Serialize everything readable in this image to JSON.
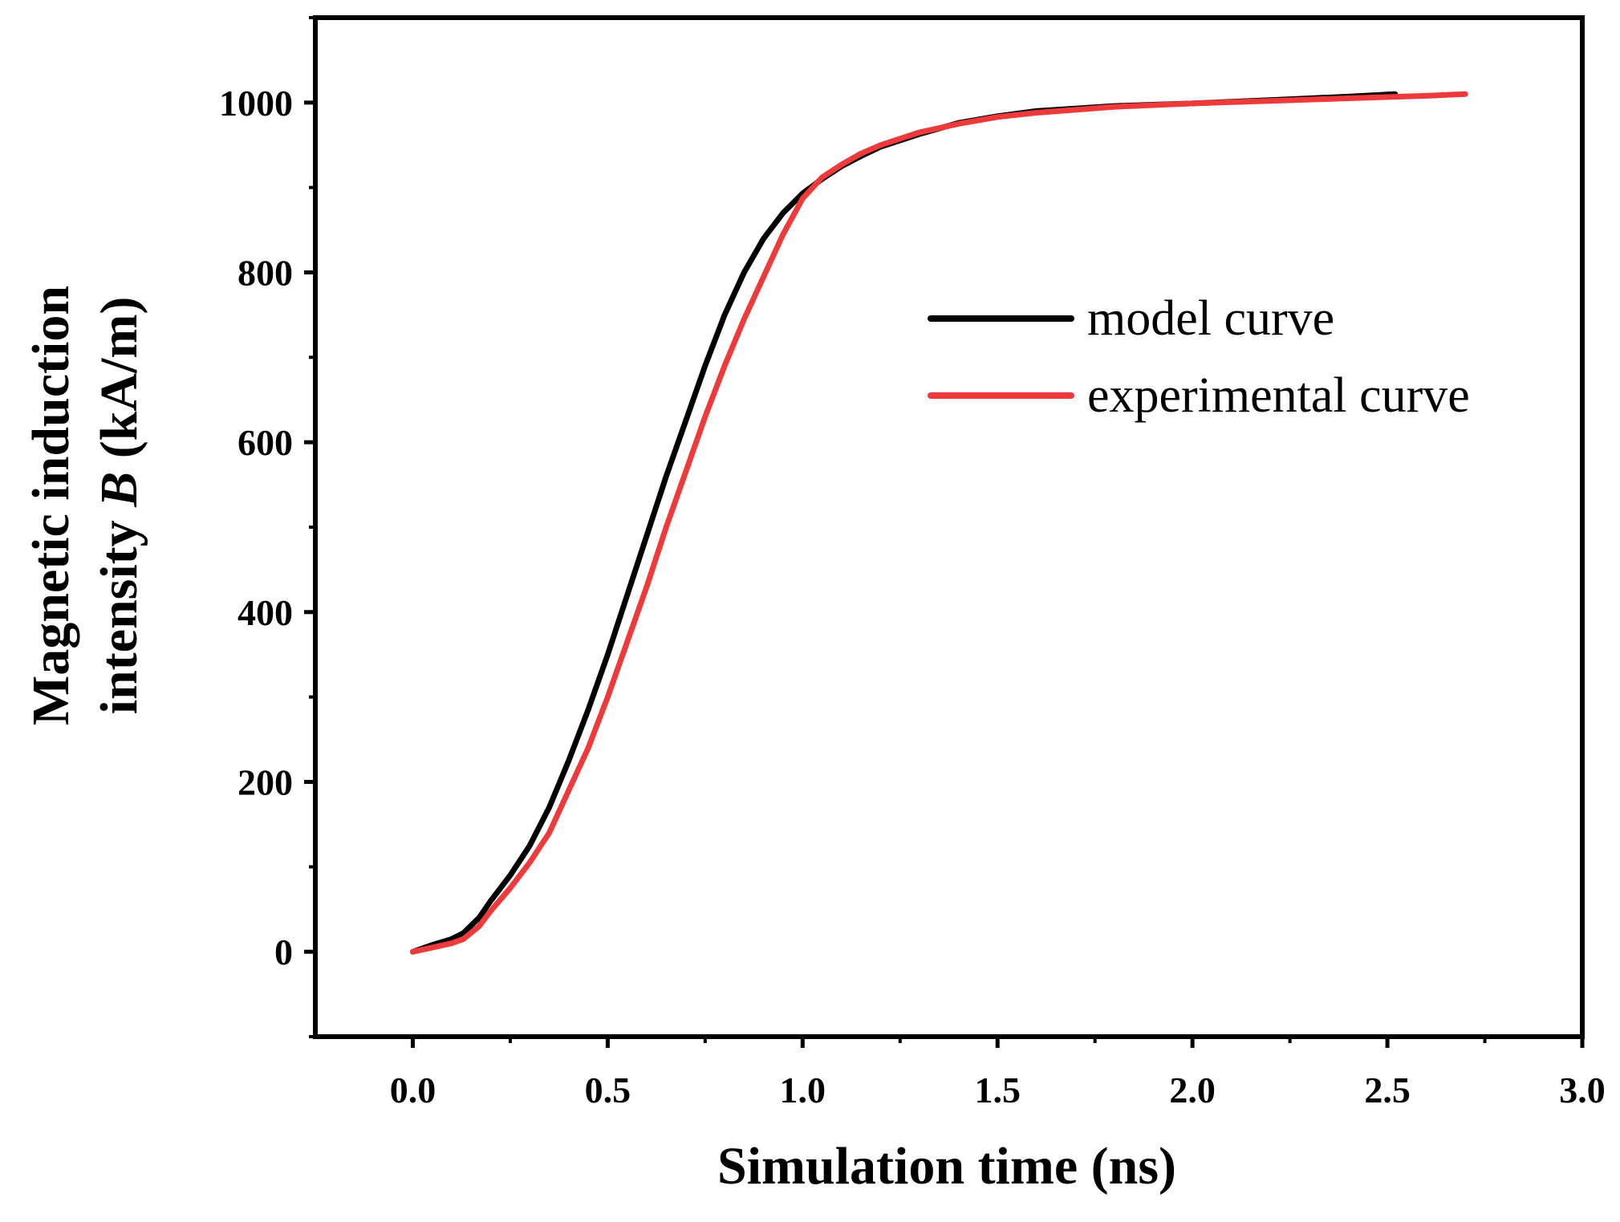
{
  "chart_data": {
    "type": "line",
    "title": "",
    "xlabel": "Simulation time (ns)",
    "ylabel": {
      "line1": "Magnetic induction",
      "line2_prefix": "intensity ",
      "line2_symbol": "B",
      "line2_suffix": " (kA/m)"
    },
    "xlim": [
      -0.25,
      3.0
    ],
    "ylim": [
      -100,
      1100
    ],
    "x_ticks": [
      0.0,
      0.5,
      1.0,
      1.5,
      2.0,
      2.5,
      3.0
    ],
    "x_tick_labels": [
      "0.0",
      "0.5",
      "1.0",
      "1.5",
      "2.0",
      "2.5",
      "3.0"
    ],
    "y_ticks": [
      0,
      200,
      400,
      600,
      800,
      1000
    ],
    "y_tick_labels": [
      "0",
      "200",
      "400",
      "600",
      "800",
      "1000"
    ],
    "grid": false,
    "legend_position": "center-right",
    "series": [
      {
        "name": "model curve",
        "color": "#000000",
        "x": [
          0.0,
          0.05,
          0.1,
          0.13,
          0.17,
          0.2,
          0.25,
          0.3,
          0.35,
          0.4,
          0.45,
          0.5,
          0.55,
          0.6,
          0.65,
          0.7,
          0.75,
          0.8,
          0.85,
          0.9,
          0.95,
          1.0,
          1.05,
          1.1,
          1.15,
          1.2,
          1.3,
          1.4,
          1.5,
          1.6,
          1.8,
          2.0,
          2.2,
          2.4,
          2.52
        ],
        "y": [
          0,
          8,
          15,
          22,
          40,
          60,
          90,
          125,
          170,
          225,
          285,
          350,
          420,
          490,
          560,
          625,
          690,
          750,
          800,
          840,
          870,
          893,
          910,
          925,
          937,
          948,
          963,
          976,
          984,
          990,
          996,
          999,
          1003,
          1007,
          1010
        ]
      },
      {
        "name": "experimental curve",
        "color": "#ee3a3a",
        "x": [
          0.0,
          0.05,
          0.1,
          0.13,
          0.17,
          0.2,
          0.25,
          0.3,
          0.35,
          0.4,
          0.45,
          0.5,
          0.55,
          0.6,
          0.65,
          0.7,
          0.75,
          0.8,
          0.85,
          0.9,
          0.95,
          1.0,
          1.05,
          1.1,
          1.15,
          1.2,
          1.3,
          1.4,
          1.5,
          1.6,
          1.8,
          2.0,
          2.2,
          2.4,
          2.6,
          2.7
        ],
        "y": [
          0,
          5,
          10,
          15,
          30,
          48,
          75,
          105,
          140,
          190,
          240,
          300,
          365,
          430,
          500,
          565,
          630,
          690,
          745,
          795,
          845,
          887,
          912,
          927,
          940,
          950,
          965,
          975,
          983,
          988,
          995,
          999,
          1002,
          1005,
          1008,
          1010
        ]
      }
    ]
  }
}
